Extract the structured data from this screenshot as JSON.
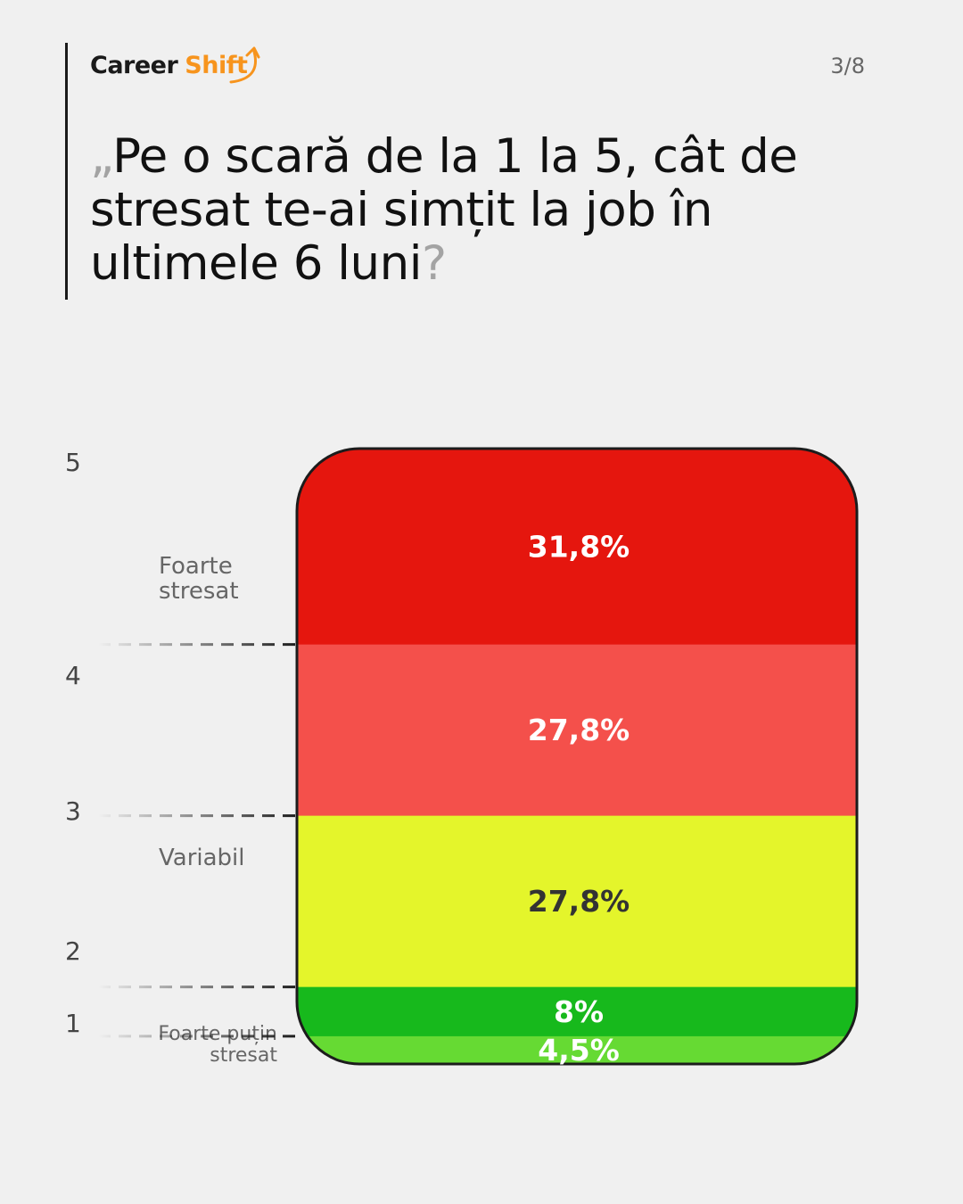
{
  "brand": {
    "name_part1": "Career",
    "name_part2": "Shift",
    "primary_color": "#f7941d"
  },
  "page_indicator": "3/8",
  "question": {
    "open_mark": "„",
    "text": "Pe o scară de la 1 la 5, cât de stresat te-ai simțit la job în ultimele 6 luni",
    "close_mark": "?"
  },
  "scale_numbers": [
    "5",
    "4",
    "3",
    "2",
    "1"
  ],
  "side_labels": {
    "top": [
      "Foarte",
      "stresat"
    ],
    "middle": "Variabil",
    "bottom": [
      "Foarte puțin",
      "stresat"
    ]
  },
  "chart_data": {
    "type": "bar",
    "orientation": "stacked-vertical",
    "title": "",
    "xlabel": "",
    "ylabel": "",
    "categories": [
      "5",
      "4",
      "3",
      "2",
      "1"
    ],
    "values": [
      31.8,
      27.8,
      27.8,
      8,
      4.5
    ],
    "data_labels": [
      "31,8%",
      "27,8%",
      "27,8%",
      "8%",
      "4,5%"
    ],
    "colors": [
      "#e5160e",
      "#f4504b",
      "#e4f52b",
      "#17b91c",
      "#66da33"
    ],
    "label_colors": [
      "#ffffff",
      "#ffffff",
      "#333333",
      "#ffffff",
      "#ffffff"
    ],
    "unit": "%",
    "grid": false,
    "legend": "none"
  }
}
